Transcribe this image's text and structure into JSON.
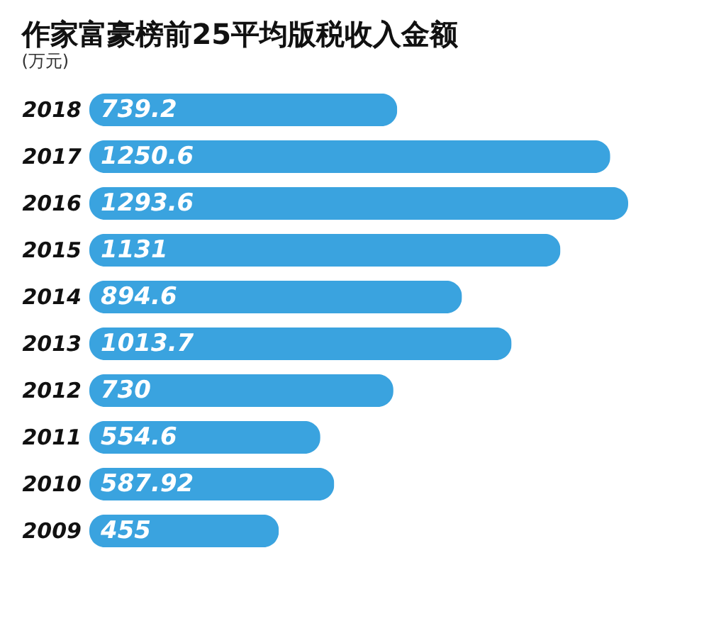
{
  "chart_data": {
    "type": "bar",
    "orientation": "horizontal",
    "title": "作家富豪榜前25平均版税收入金额",
    "subtitle": "(万元)",
    "categories": [
      "2018",
      "2017",
      "2016",
      "2015",
      "2014",
      "2013",
      "2012",
      "2011",
      "2010",
      "2009"
    ],
    "values": [
      739.2,
      1250.6,
      1293.6,
      1131,
      894.6,
      1013.7,
      730,
      554.6,
      587.92,
      455
    ],
    "color": "#3aa3df",
    "data_labels": true,
    "grid": false
  }
}
